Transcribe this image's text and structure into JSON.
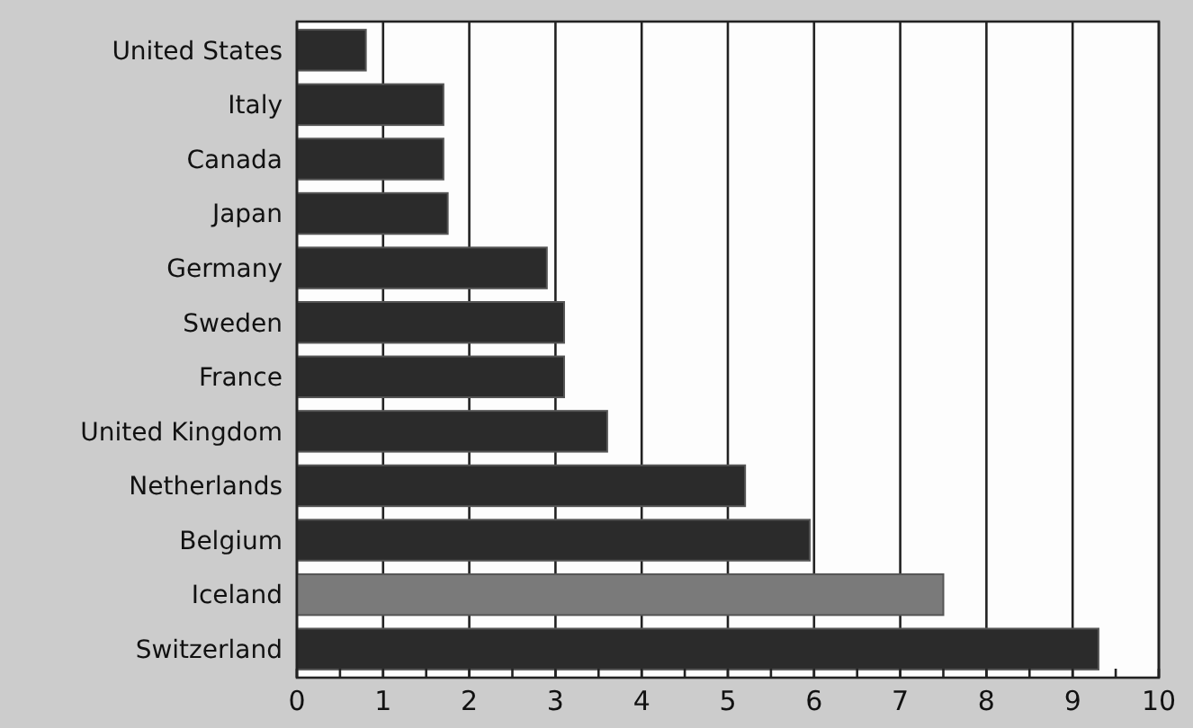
{
  "chart_data": {
    "type": "bar",
    "orientation": "horizontal",
    "categories": [
      "United States",
      "Italy",
      "Canada",
      "Japan",
      "Germany",
      "Sweden",
      "France",
      "United Kingdom",
      "Netherlands",
      "Belgium",
      "Iceland",
      "Switzerland"
    ],
    "values": [
      0.8,
      1.7,
      1.7,
      1.75,
      2.9,
      3.1,
      3.1,
      3.6,
      5.2,
      5.95,
      7.5,
      9.3
    ],
    "colors": [
      "#2b2b2b",
      "#2b2b2b",
      "#2b2b2b",
      "#2b2b2b",
      "#2b2b2b",
      "#2b2b2b",
      "#2b2b2b",
      "#2b2b2b",
      "#2b2b2b",
      "#2b2b2b",
      "#7a7a7a",
      "#2b2b2b"
    ],
    "xlim": [
      0,
      10
    ],
    "xticks": [
      0,
      {
        "value": 0.5,
        "label": null
      },
      1,
      {
        "value": 1.5,
        "label": null
      },
      2,
      {
        "value": 2.5,
        "label": null
      },
      3,
      {
        "value": 3.5,
        "label": null
      },
      4,
      {
        "value": 4.5,
        "label": null
      },
      5,
      {
        "value": 5.5,
        "label": null
      },
      6,
      {
        "value": 6.5,
        "label": null
      },
      7,
      {
        "value": 7.5,
        "label": null
      },
      8,
      {
        "value": 8.5,
        "label": null
      },
      9,
      {
        "value": 9.5,
        "label": null
      },
      10
    ],
    "grid": "x"
  }
}
